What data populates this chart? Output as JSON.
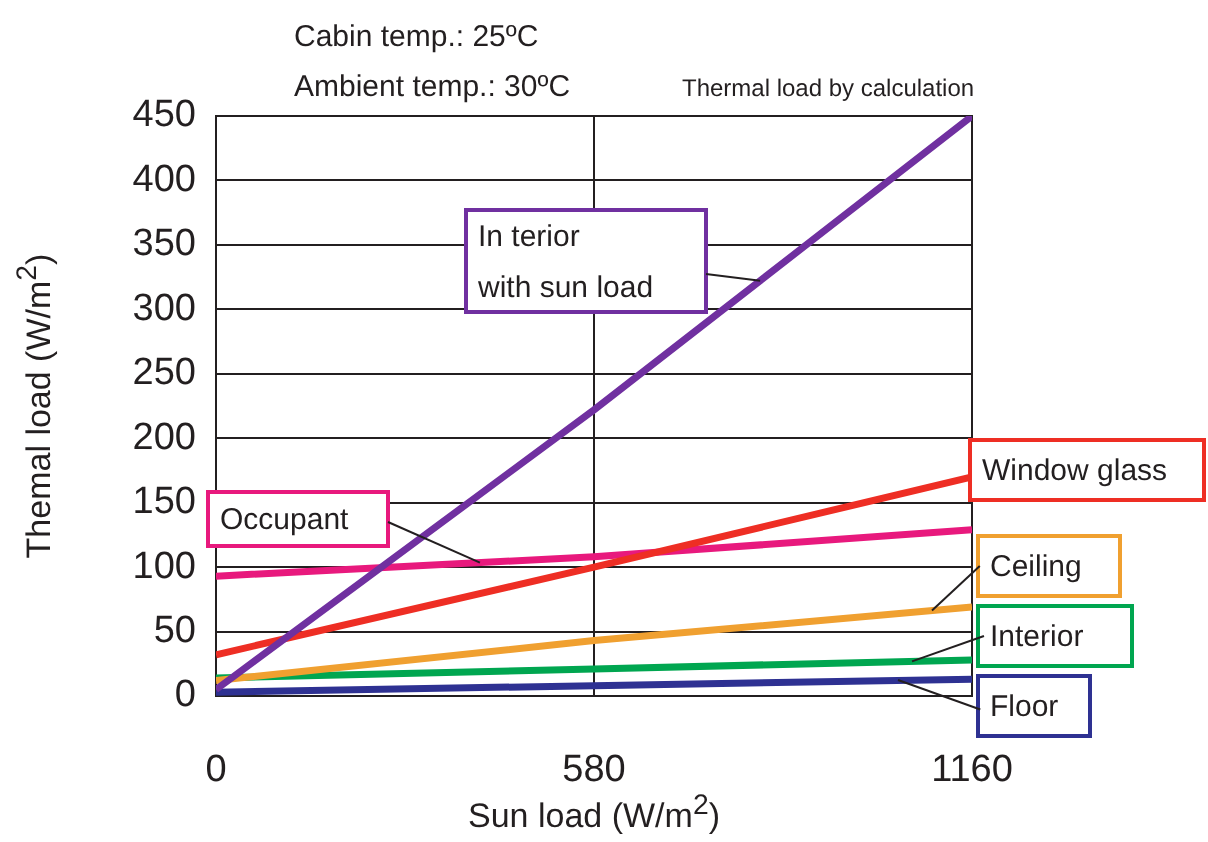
{
  "chart_data": {
    "type": "line",
    "xlabel": "Sun load (W/m$^{2}$)",
    "ylabel": "Themal load (W/m$^{2}$)",
    "annotations": [
      "Cabin temp.: 25ºC",
      "Ambient temp.: 30ºC",
      "Thermal load by calculation"
    ],
    "x": [
      0,
      580,
      1160
    ],
    "series": [
      {
        "name": "In terior\nwith sun load",
        "color": "#7030a0",
        "values": [
          5,
          222,
          450
        ]
      },
      {
        "name": "Window glass",
        "color": "#ee2e24",
        "values": [
          32,
          100,
          170
        ]
      },
      {
        "name": "Occupant",
        "color": "#e8197d",
        "values": [
          93,
          108,
          129
        ]
      },
      {
        "name": "Ceiling",
        "color": "#f0a030",
        "values": [
          12,
          43,
          69
        ]
      },
      {
        "name": "Interior",
        "color": "#00a650",
        "values": [
          14,
          21,
          28
        ]
      },
      {
        "name": "Floor",
        "color": "#2e3192",
        "values": [
          3,
          8,
          13
        ]
      }
    ],
    "xlim": [
      0,
      1160
    ],
    "xticks": [
      0,
      580,
      1160
    ],
    "ylim": [
      0,
      450
    ],
    "yticks": [
      0,
      50,
      100,
      150,
      200,
      250,
      300,
      350,
      400,
      450
    ],
    "grid": true,
    "legend": false,
    "marker": "none",
    "line_style": "solid"
  }
}
